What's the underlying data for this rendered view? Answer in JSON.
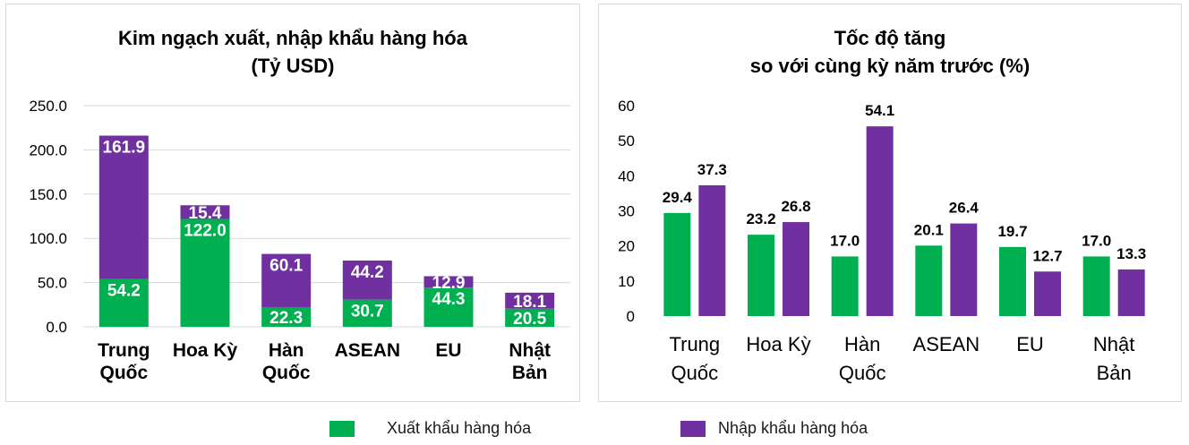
{
  "colors": {
    "export": "#00b050",
    "import": "#7030a0",
    "grid": "#d9d9d9"
  },
  "legend": {
    "export_label": "Xuất khẩu hàng hóa",
    "import_label": "Nhập khẩu hàng hóa"
  },
  "chart_data": [
    {
      "type": "bar",
      "stacked": true,
      "title_line1": "Kim ngạch xuất, nhập khẩu hàng hóa",
      "title_line2": "(Tỷ USD)",
      "categories": [
        [
          "Trung",
          "Quốc"
        ],
        [
          "Hoa Kỳ"
        ],
        [
          "Hàn",
          "Quốc"
        ],
        [
          "ASEAN"
        ],
        [
          "EU"
        ],
        [
          "Nhật",
          "Bản"
        ]
      ],
      "series": [
        {
          "name": "Xuất khẩu hàng hóa",
          "values": [
            54.2,
            122.0,
            22.3,
            30.7,
            44.3,
            20.5
          ]
        },
        {
          "name": "Nhập khẩu hàng hóa",
          "values": [
            161.9,
            15.4,
            60.1,
            44.2,
            12.9,
            18.1
          ]
        }
      ],
      "ylim": [
        0,
        250
      ],
      "yticks": [
        "0.0",
        "50.0",
        "100.0",
        "150.0",
        "200.0",
        "250.0"
      ],
      "grid": true
    },
    {
      "type": "bar",
      "stacked": false,
      "title_line1": "Tốc độ tăng",
      "title_line2": "so với cùng kỳ năm trước (%)",
      "categories": [
        [
          "Trung",
          "Quốc"
        ],
        [
          "Hoa Kỳ"
        ],
        [
          "Hàn",
          "Quốc"
        ],
        [
          "ASEAN"
        ],
        [
          "EU"
        ],
        [
          "Nhật",
          "Bản"
        ]
      ],
      "series": [
        {
          "name": "Xuất khẩu hàng hóa",
          "values": [
            29.4,
            23.2,
            17.0,
            20.1,
            19.7,
            17.0
          ]
        },
        {
          "name": "Nhập khẩu hàng hóa",
          "values": [
            37.3,
            26.8,
            54.1,
            26.4,
            12.7,
            13.3
          ]
        }
      ],
      "ylim": [
        0,
        60
      ],
      "yticks": [
        "0",
        "10",
        "20",
        "30",
        "40",
        "50",
        "60"
      ],
      "grid": false
    }
  ]
}
